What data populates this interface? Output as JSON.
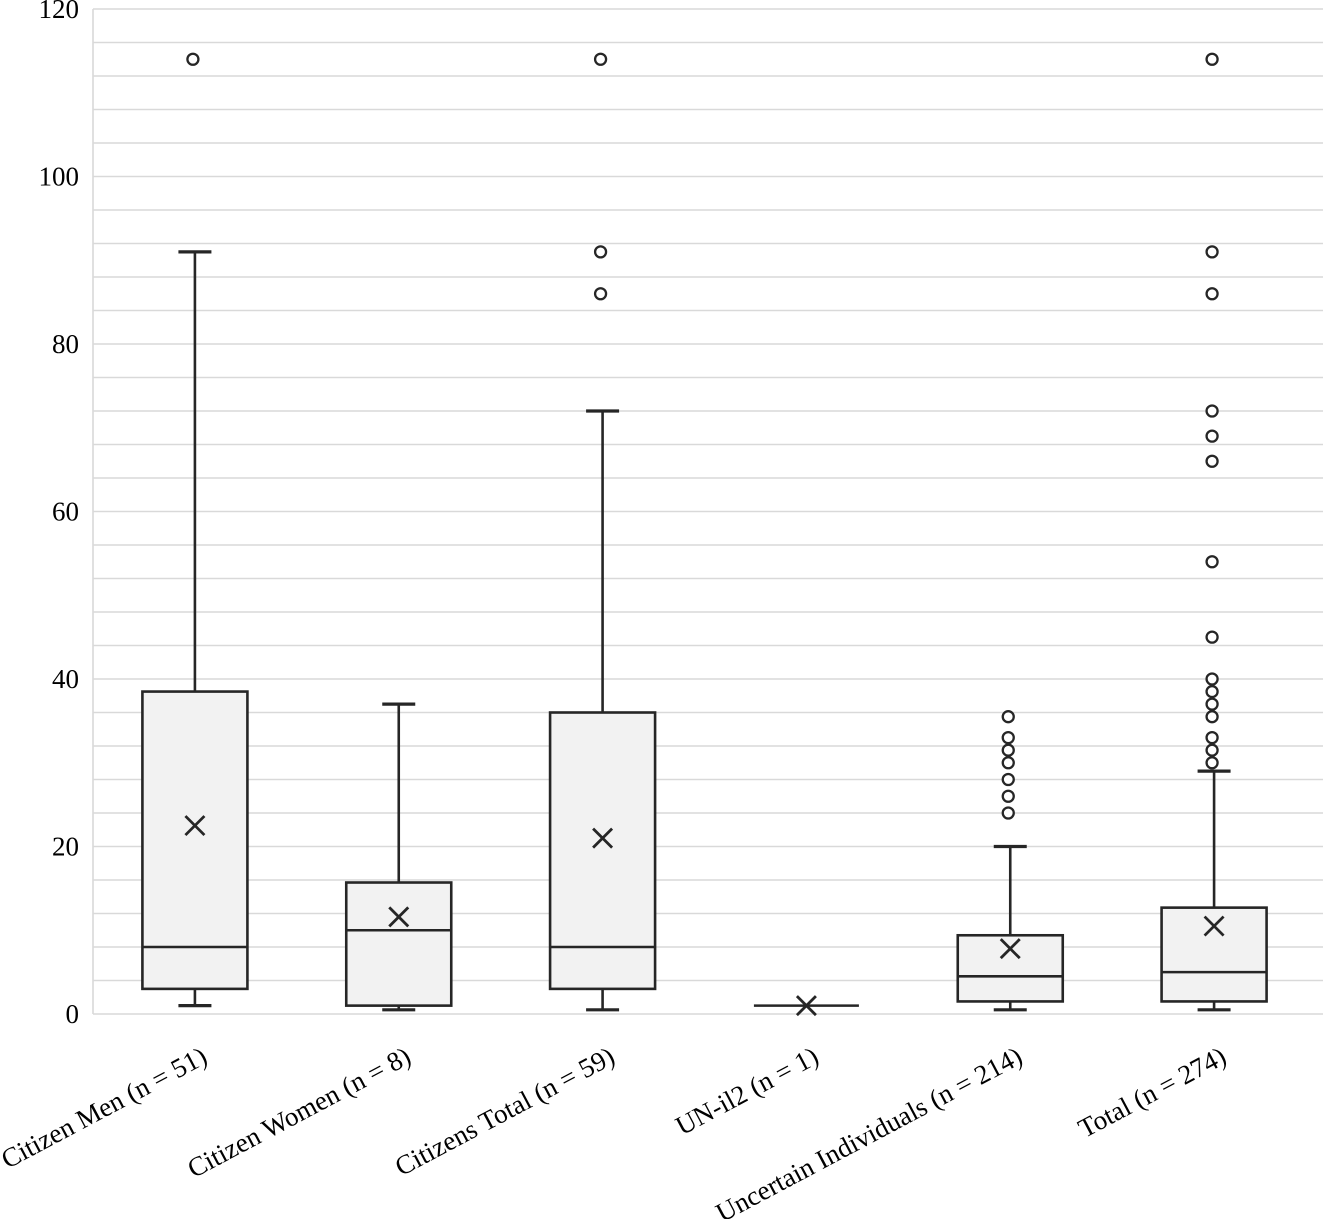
{
  "chart_data": {
    "type": "boxplot",
    "title": "",
    "xlabel": "",
    "ylabel": "",
    "ylim": [
      0,
      120
    ],
    "yticks": [
      0,
      20,
      40,
      60,
      80,
      100,
      120
    ],
    "minor_gridline_step": 4,
    "grid": "on",
    "legend": "none",
    "marker_legend": {
      "mean_marker": "x-cross",
      "outlier_marker": "open-circle"
    },
    "categories": [
      "Citizen Men (n = 51)",
      "Citizen Women (n = 8)",
      "Citizens Total (n = 59)",
      "UN-il2 (n = 1)",
      "Uncertain Individuals (n = 214)",
      "Total (n = 274)"
    ],
    "series": [
      {
        "name": "Citizen Men (n = 51)",
        "whisker_low": 1,
        "q1": 3,
        "median": 8,
        "q3": 38.5,
        "whisker_high": 91,
        "mean": 22.5,
        "outliers": [
          114
        ]
      },
      {
        "name": "Citizen Women (n = 8)",
        "whisker_low": 0.5,
        "q1": 1,
        "median": 10,
        "q3": 15.7,
        "whisker_high": 37,
        "mean": 11.6,
        "outliers": []
      },
      {
        "name": "Citizens Total (n = 59)",
        "whisker_low": 0.5,
        "q1": 3,
        "median": 8,
        "q3": 36,
        "whisker_high": 72,
        "mean": 21,
        "outliers": [
          86,
          91,
          114
        ]
      },
      {
        "name": "UN-il2 (n = 1)",
        "whisker_low": 1,
        "q1": 1,
        "median": 1,
        "q3": 1,
        "whisker_high": 1,
        "mean": 1,
        "outliers": []
      },
      {
        "name": "Uncertain Individuals (n = 214)",
        "whisker_low": 0.5,
        "q1": 1.5,
        "median": 4.5,
        "q3": 9.4,
        "whisker_high": 20,
        "mean": 7.8,
        "outliers": [
          24,
          26,
          28,
          30,
          31.5,
          33,
          35.5
        ]
      },
      {
        "name": "Total (n = 274)",
        "whisker_low": 0.5,
        "q1": 1.5,
        "median": 5,
        "q3": 12.7,
        "whisker_high": 29,
        "mean": 10.5,
        "outliers": [
          30,
          31.5,
          33,
          35.5,
          37,
          38.5,
          40,
          45,
          54,
          66,
          69,
          72,
          86,
          91,
          114
        ]
      }
    ],
    "colors": {
      "box_fill": "#f2f2f2",
      "box_stroke": "#262626",
      "median_stroke": "#262626",
      "whisker_stroke": "#262626",
      "mean_stroke": "#262626",
      "outlier_stroke": "#262626",
      "outlier_fill": "#ffffff",
      "gridline": "#d9d9d9",
      "axis_line": "#d9d9d9",
      "text": "#000000"
    }
  }
}
